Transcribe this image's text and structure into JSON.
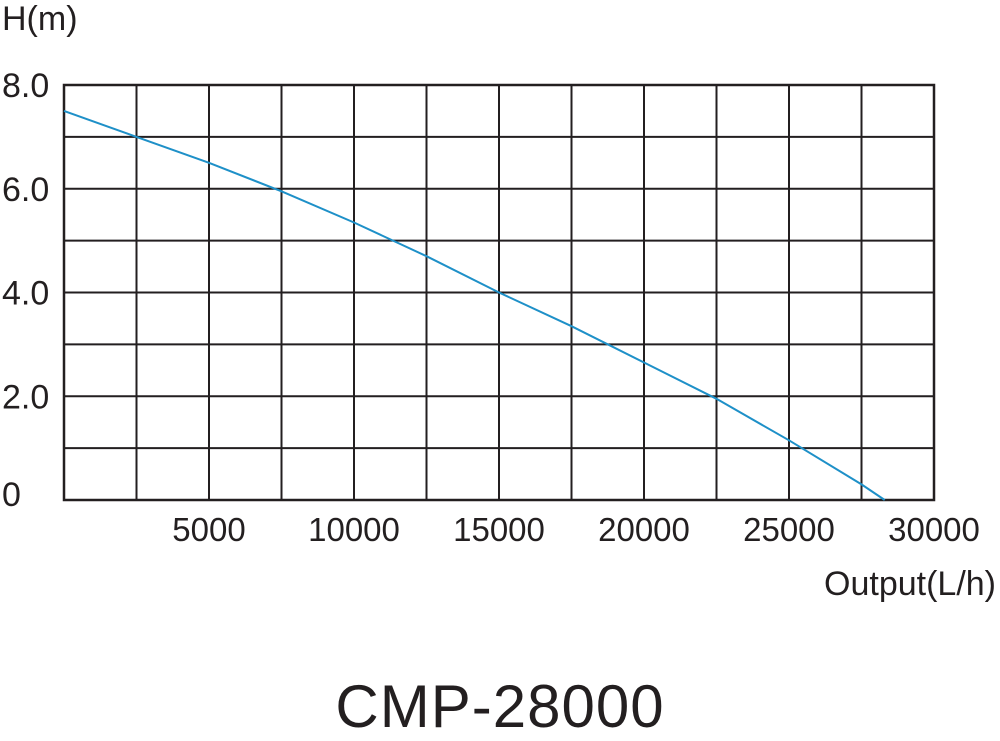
{
  "chart_data": {
    "type": "line",
    "title": "CMP-28000",
    "xlabel": "Output(L/h)",
    "ylabel": "H(m)",
    "xlim": [
      0,
      30000
    ],
    "ylim": [
      0,
      8
    ],
    "grid": true,
    "x_ticks": [
      5000,
      10000,
      15000,
      20000,
      25000,
      30000
    ],
    "x_tick_labels": [
      "5000",
      "10000",
      "15000",
      "20000",
      "25000",
      "30000"
    ],
    "y_ticks": [
      0,
      2,
      4,
      6,
      8
    ],
    "y_tick_labels": [
      "0",
      "2.0",
      "4.0",
      "6.0",
      "8.0"
    ],
    "series": [
      {
        "color": "#1e90c8",
        "x": [
          0,
          2500,
          5000,
          7500,
          10000,
          12500,
          15000,
          17500,
          20000,
          22500,
          25000,
          27500,
          28300
        ],
        "y": [
          7.5,
          7.0,
          6.5,
          5.95,
          5.35,
          4.7,
          4.0,
          3.35,
          2.65,
          1.95,
          1.15,
          0.3,
          0.0
        ]
      }
    ]
  }
}
